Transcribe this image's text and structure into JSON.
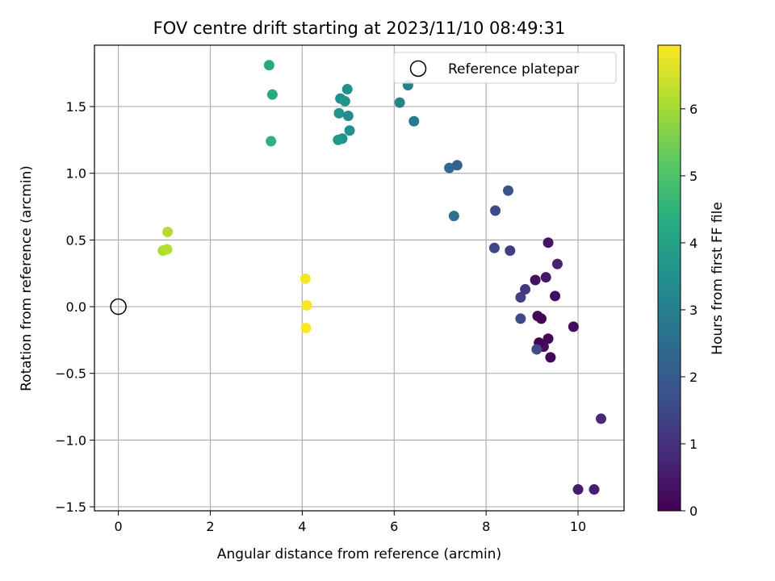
{
  "chart_data": {
    "type": "scatter",
    "title": "FOV centre drift starting at 2023/11/10 08:49:31",
    "xlabel": "Angular distance from reference (arcmin)",
    "ylabel": "Rotation from reference (arcmin)",
    "xlim": [
      -0.52,
      11.0
    ],
    "ylim": [
      -1.53,
      1.96
    ],
    "xticks": [
      0,
      2,
      4,
      6,
      8,
      10
    ],
    "xtick_labels": [
      "0",
      "2",
      "4",
      "6",
      "8",
      "10"
    ],
    "yticks": [
      -1.5,
      -1.0,
      -0.5,
      0.0,
      0.5,
      1.0,
      1.5
    ],
    "ytick_labels": [
      "−1.5",
      "−1.0",
      "−0.5",
      "0.0",
      "0.5",
      "1.0",
      "1.5"
    ],
    "grid": true,
    "colormap": "viridis",
    "colorbar": {
      "label": "Hours from first FF file",
      "range": [
        0,
        6.95
      ],
      "ticks": [
        0,
        1,
        2,
        3,
        4,
        5,
        6
      ],
      "tick_labels": [
        "0",
        "1",
        "2",
        "3",
        "4",
        "5",
        "6"
      ]
    },
    "legend": {
      "position": "top-right",
      "entries": [
        "Reference platepar"
      ]
    },
    "reference_point": {
      "x": 0,
      "y": 0
    },
    "points": [
      {
        "x": 10.0,
        "y": -1.37,
        "c": 0.55
      },
      {
        "x": 10.35,
        "y": -1.37,
        "c": 0.6
      },
      {
        "x": 10.5,
        "y": -0.84,
        "c": 0.8
      },
      {
        "x": 9.9,
        "y": -0.15,
        "c": 0.25
      },
      {
        "x": 9.4,
        "y": -0.38,
        "c": 0.1
      },
      {
        "x": 9.35,
        "y": -0.24,
        "c": 0.15
      },
      {
        "x": 9.25,
        "y": -0.3,
        "c": 0.2
      },
      {
        "x": 9.15,
        "y": -0.27,
        "c": 0.05
      },
      {
        "x": 9.2,
        "y": -0.09,
        "c": 0.05
      },
      {
        "x": 9.12,
        "y": -0.07,
        "c": 0.1
      },
      {
        "x": 9.5,
        "y": 0.08,
        "c": 0.2
      },
      {
        "x": 9.3,
        "y": 0.22,
        "c": 0.5
      },
      {
        "x": 9.07,
        "y": 0.2,
        "c": 0.3
      },
      {
        "x": 9.35,
        "y": 0.48,
        "c": 0.4
      },
      {
        "x": 9.55,
        "y": 0.32,
        "c": 0.7
      },
      {
        "x": 8.85,
        "y": 0.13,
        "c": 1.1
      },
      {
        "x": 8.75,
        "y": 0.07,
        "c": 1.3
      },
      {
        "x": 8.75,
        "y": -0.09,
        "c": 1.55
      },
      {
        "x": 9.1,
        "y": -0.32,
        "c": 1.6
      },
      {
        "x": 8.52,
        "y": 0.42,
        "c": 1.3
      },
      {
        "x": 8.18,
        "y": 0.44,
        "c": 1.5
      },
      {
        "x": 8.2,
        "y": 0.72,
        "c": 1.6
      },
      {
        "x": 8.48,
        "y": 0.87,
        "c": 1.75
      },
      {
        "x": 7.3,
        "y": 0.68,
        "c": 2.6
      },
      {
        "x": 7.2,
        "y": 1.04,
        "c": 2.4
      },
      {
        "x": 7.37,
        "y": 1.06,
        "c": 2.2
      },
      {
        "x": 6.43,
        "y": 1.39,
        "c": 2.9
      },
      {
        "x": 6.12,
        "y": 1.53,
        "c": 3.1
      },
      {
        "x": 6.3,
        "y": 1.66,
        "c": 3.0
      },
      {
        "x": 4.98,
        "y": 1.63,
        "c": 3.5
      },
      {
        "x": 4.83,
        "y": 1.56,
        "c": 3.45
      },
      {
        "x": 4.93,
        "y": 1.54,
        "c": 3.6
      },
      {
        "x": 4.8,
        "y": 1.45,
        "c": 3.6
      },
      {
        "x": 5.0,
        "y": 1.43,
        "c": 3.4
      },
      {
        "x": 5.03,
        "y": 1.32,
        "c": 3.5
      },
      {
        "x": 4.87,
        "y": 1.26,
        "c": 3.45
      },
      {
        "x": 4.78,
        "y": 1.25,
        "c": 3.7
      },
      {
        "x": 3.28,
        "y": 1.81,
        "c": 4.2
      },
      {
        "x": 3.35,
        "y": 1.59,
        "c": 4.25
      },
      {
        "x": 3.32,
        "y": 1.24,
        "c": 4.5
      },
      {
        "x": 1.07,
        "y": 0.56,
        "c": 6.15
      },
      {
        "x": 0.97,
        "y": 0.42,
        "c": 6.1
      },
      {
        "x": 1.06,
        "y": 0.43,
        "c": 6.2
      },
      {
        "x": 4.07,
        "y": 0.21,
        "c": 6.85
      },
      {
        "x": 4.1,
        "y": 0.01,
        "c": 6.9
      },
      {
        "x": 4.08,
        "y": -0.16,
        "c": 6.95
      }
    ]
  }
}
